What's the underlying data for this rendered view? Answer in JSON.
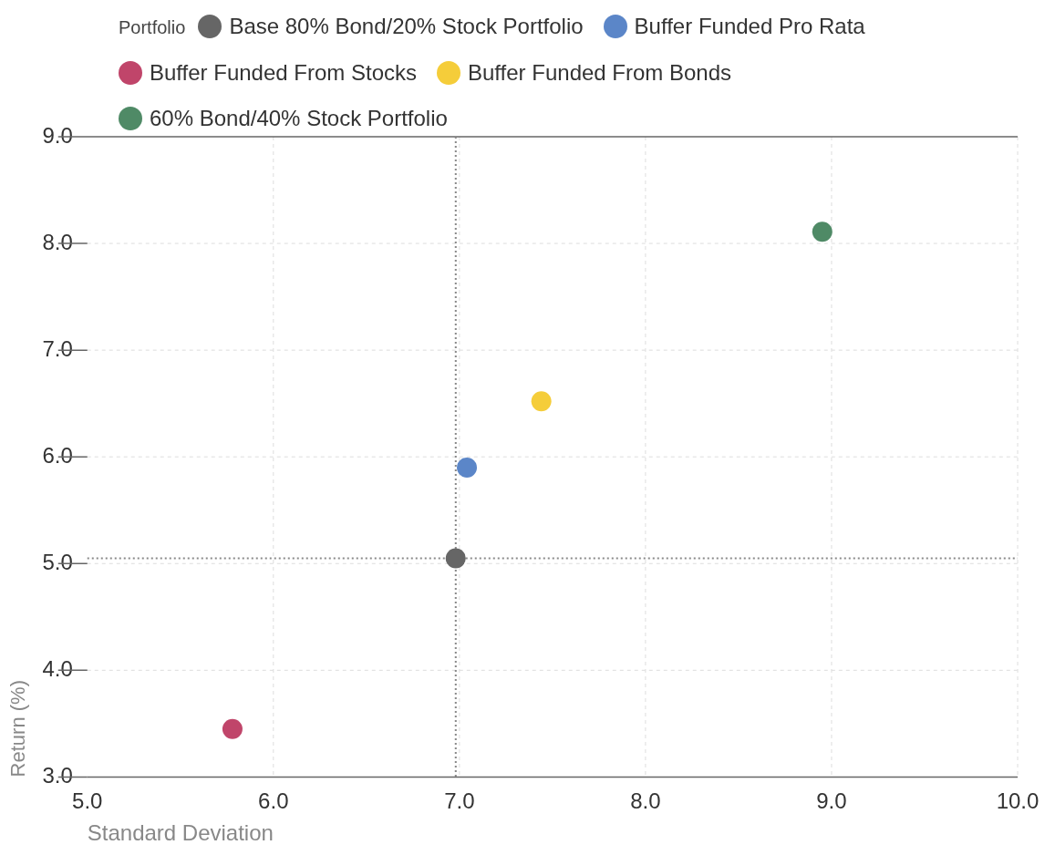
{
  "chart_data": {
    "type": "scatter",
    "xlabel": "Standard Deviation",
    "ylabel": "Return (%)",
    "legend_title": "Portfolio",
    "legend": "top left",
    "grid": true,
    "marker": "circle",
    "xlim": [
      5,
      10
    ],
    "xticks": [
      {
        "value": 5,
        "label": "5.0"
      },
      {
        "value": 6,
        "label": "6.0"
      },
      {
        "value": 7,
        "label": "7.0"
      },
      {
        "value": 8,
        "label": "8.0"
      },
      {
        "value": 9,
        "label": "9.0"
      },
      {
        "value": 10,
        "label": "10.0"
      }
    ],
    "ylim": [
      3,
      9
    ],
    "yticks": [
      {
        "value": 3,
        "label": "3.0"
      },
      {
        "value": 4,
        "label": "4.0"
      },
      {
        "value": 5,
        "label": "5.0"
      },
      {
        "value": 6,
        "label": "6.0"
      },
      {
        "value": 7,
        "label": "7.0"
      },
      {
        "value": 8,
        "label": "8.0"
      },
      {
        "value": 9,
        "label": "9.0"
      }
    ],
    "ref_lines": [
      {
        "axis": "x",
        "value": 6.98,
        "line_style": "dotted",
        "color": "#888888"
      },
      {
        "axis": "y",
        "value": 5.05,
        "line_style": "dotted",
        "color": "#888888"
      }
    ],
    "series": [
      {
        "name": "Base 80% Bond/20% Stock Portfolio",
        "color": "#666666",
        "x": [
          6.98
        ],
        "values": [
          5.05
        ]
      },
      {
        "name": "Buffer Funded Pro Rata",
        "color": "#5b86c8",
        "x": [
          7.04
        ],
        "values": [
          5.9
        ]
      },
      {
        "name": "Buffer Funded From Stocks",
        "color": "#c0456a",
        "x": [
          5.78
        ],
        "values": [
          3.45
        ]
      },
      {
        "name": "Buffer Funded From Bonds",
        "color": "#f5cd3a",
        "x": [
          7.44
        ],
        "values": [
          6.52
        ]
      },
      {
        "name": "60% Bond/40% Stock Portfolio",
        "color": "#4f8a66",
        "x": [
          8.95
        ],
        "values": [
          8.11
        ]
      }
    ]
  }
}
